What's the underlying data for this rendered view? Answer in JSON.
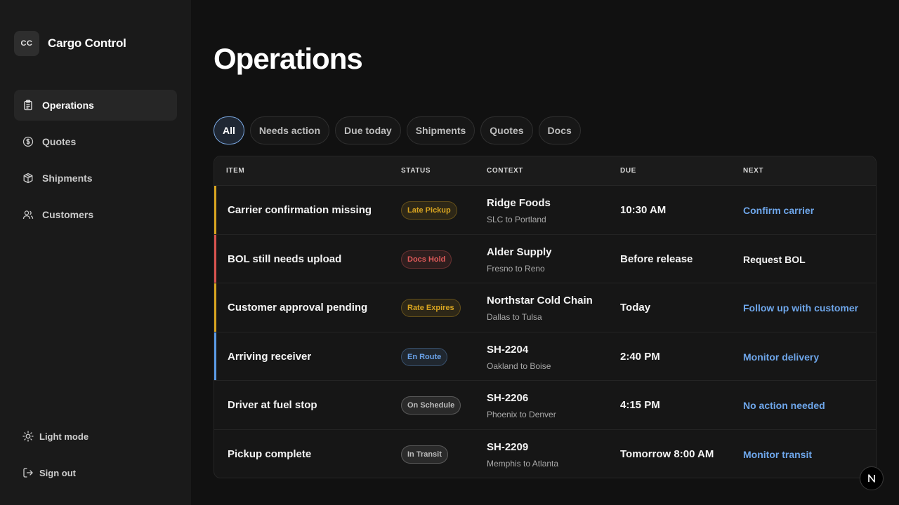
{
  "brand": {
    "logo_text": "CC",
    "name": "Cargo Control"
  },
  "sidebar": {
    "items": [
      {
        "label": "Operations",
        "icon": "clipboard-icon",
        "active": true
      },
      {
        "label": "Quotes",
        "icon": "dollar-circle-icon",
        "active": false
      },
      {
        "label": "Shipments",
        "icon": "package-icon",
        "active": false
      },
      {
        "label": "Customers",
        "icon": "users-icon",
        "active": false
      }
    ],
    "bottom": [
      {
        "label": "Light mode",
        "icon": "sun-icon"
      },
      {
        "label": "Sign out",
        "icon": "sign-out-icon"
      }
    ]
  },
  "page": {
    "title": "Operations"
  },
  "filters": [
    "All",
    "Needs action",
    "Due today",
    "Shipments",
    "Quotes",
    "Docs"
  ],
  "active_filter": "All",
  "table": {
    "headers": {
      "item": "ITEM",
      "status": "STATUS",
      "context": "CONTEXT",
      "due": "DUE",
      "next": "NEXT"
    },
    "rows": [
      {
        "item": "Carrier confirmation missing",
        "status": "Late Pickup",
        "status_color": "#d9a520",
        "accent": "#d9a520",
        "context": "Ridge Foods",
        "route": "SLC to Portland",
        "due": "10:30 AM",
        "next": "Confirm carrier",
        "next_link": true
      },
      {
        "item": "BOL still needs upload",
        "status": "Docs Hold",
        "status_color": "#e05a5a",
        "accent": "#d9534f",
        "context": "Alder Supply",
        "route": "Fresno to Reno",
        "due": "Before release",
        "next": "Request BOL",
        "next_link": false
      },
      {
        "item": "Customer approval pending",
        "status": "Rate Expires",
        "status_color": "#d9a520",
        "accent": "#d9a520",
        "context": "Northstar Cold Chain",
        "route": "Dallas to Tulsa",
        "due": "Today",
        "next": "Follow up with customer",
        "next_link": true
      },
      {
        "item": "Arriving receiver",
        "status": "En Route",
        "status_color": "#6aa2e8",
        "accent": "#5b9be6",
        "context": "SH-2204",
        "route": "Oakland to Boise",
        "due": "2:40 PM",
        "next": "Monitor delivery",
        "next_link": true
      },
      {
        "item": "Driver at fuel stop",
        "status": "On Schedule",
        "status_color": "#bdbdbd",
        "accent": "",
        "context": "SH-2206",
        "route": "Phoenix to Denver",
        "due": "4:15 PM",
        "next": "No action needed",
        "next_link": true
      },
      {
        "item": "Pickup complete",
        "status": "In Transit",
        "status_color": "#bdbdbd",
        "accent": "",
        "context": "SH-2209",
        "route": "Memphis to Atlanta",
        "due": "Tomorrow 8:00 AM",
        "next": "Monitor transit",
        "next_link": true
      }
    ]
  },
  "colors": {
    "link": "#6ea6ea",
    "accent_active": "#7aa7e0"
  },
  "fab": {
    "label": "N"
  }
}
